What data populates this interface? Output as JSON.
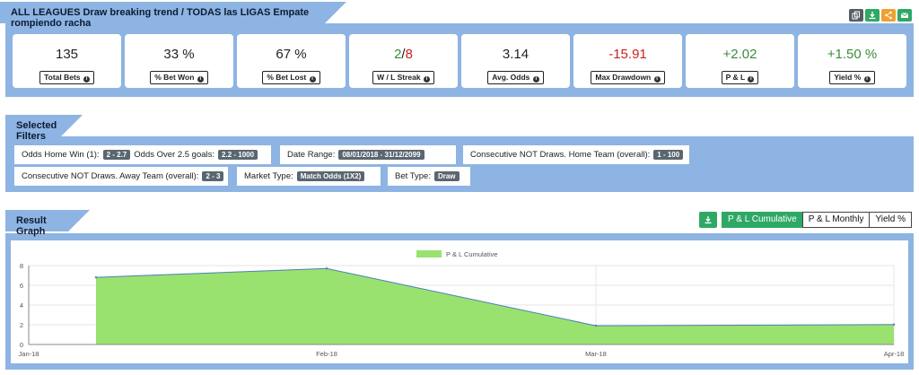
{
  "header": {
    "title": "ALL LEAGUES Draw breaking trend / TODAS las LIGAS Empate rompiendo racha",
    "actions": [
      {
        "icon": "copy-icon",
        "color": "#555d66"
      },
      {
        "icon": "download-icon",
        "color": "#2fa866"
      },
      {
        "icon": "share-icon",
        "color": "#f0a030"
      },
      {
        "icon": "email-icon",
        "color": "#2fa866"
      }
    ]
  },
  "stats": [
    {
      "value": "135",
      "label": "Total Bets",
      "color": "#222222"
    },
    {
      "value": "33 %",
      "label": "% Bet Won",
      "color": "#222222"
    },
    {
      "value": "67 %",
      "label": "% Bet Lost",
      "color": "#222222"
    },
    {
      "value_won": "2",
      "value_sep": "/",
      "value_lost": "8",
      "label": "W / L Streak"
    },
    {
      "value": "3.14",
      "label": "Avg. Odds",
      "color": "#222222"
    },
    {
      "value": "-15.91",
      "label": "Max Drawdown",
      "color": "#cc1f1f"
    },
    {
      "value": "+2.02",
      "label": "P & L",
      "color": "#3a8c3a"
    },
    {
      "value": "+1.50 %",
      "label": "Yield %",
      "color": "#3a8c3a"
    }
  ],
  "filters": {
    "title": "Selected Filters",
    "items": [
      {
        "label": "Odds Home Win (1):",
        "value": "2 - 2.7"
      },
      {
        "label": "Odds Over 2.5 goals:",
        "value": "2.2 - 1000"
      },
      {
        "label": "Date Range:",
        "value": "08/01/2018 - 31/12/2099"
      },
      {
        "label": "Consecutive NOT Draws. Home Team (overall):",
        "value": "1 - 100"
      },
      {
        "label": "Consecutive NOT Draws. Away Team (overall):",
        "value": "2 - 3"
      },
      {
        "label": "Market Type:",
        "value": "Match Odds (1X2)"
      },
      {
        "label": "Bet Type:",
        "value": "Draw"
      }
    ]
  },
  "graph": {
    "title": "Result Graph",
    "buttons": [
      "P & L Cumulative",
      "P & L Monthly",
      "Yield %"
    ],
    "active": "P & L Cumulative"
  },
  "chart_data": {
    "type": "area",
    "series": [
      {
        "name": "P & L Cumulative",
        "color": "#99e26f"
      }
    ],
    "x": [
      "Jan-18",
      "Feb-18",
      "Mar-18",
      "Apr-18"
    ],
    "points": [
      {
        "x": "2018-01-08",
        "y": 6.8
      },
      {
        "x": "2018-02-01",
        "y": 7.7
      },
      {
        "x": "2018-03-01",
        "y": 1.9
      },
      {
        "x": "2018-04-01",
        "y": 2.02
      }
    ],
    "yticks": [
      0,
      2,
      4,
      6,
      8
    ],
    "ylim": [
      0,
      8
    ],
    "legend": "top-center",
    "grid": true
  }
}
